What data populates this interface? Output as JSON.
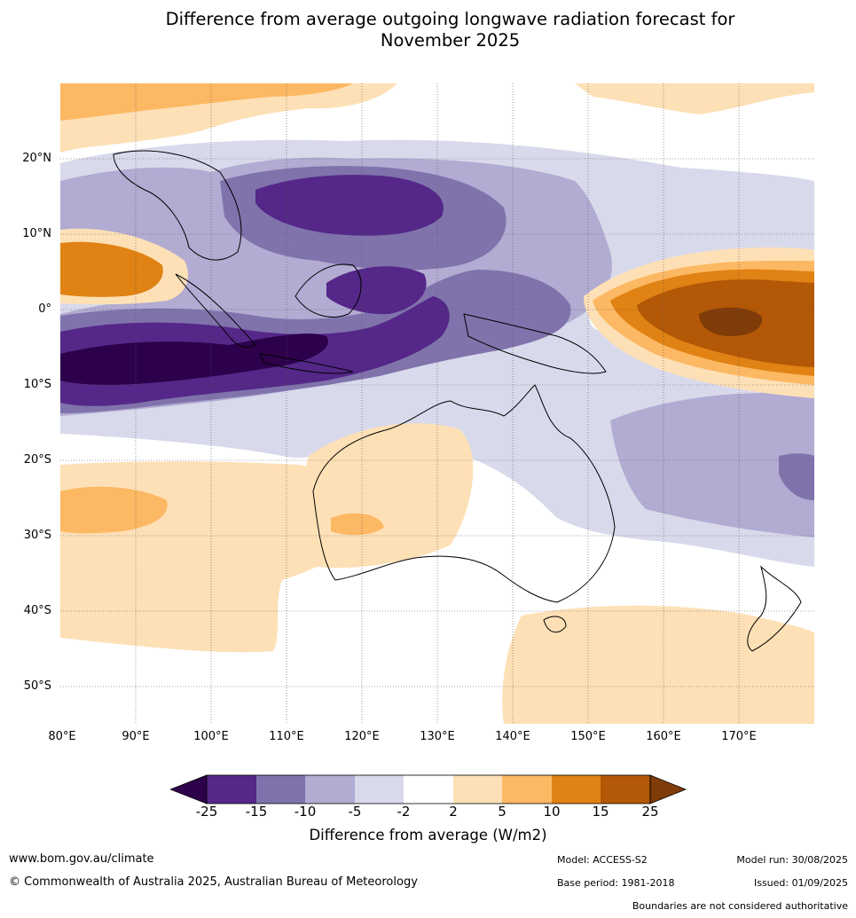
{
  "header": {
    "title_line1": "Difference from average outgoing longwave radiation forecast for",
    "title_line2": "November 2025"
  },
  "map": {
    "latitude_labels": [
      "20°N",
      "10°N",
      "0°",
      "10°S",
      "20°S",
      "30°S",
      "40°S",
      "50°S"
    ],
    "longitude_labels": [
      "80°E",
      "90°E",
      "100°E",
      "110°E",
      "120°E",
      "130°E",
      "140°E",
      "150°E",
      "160°E",
      "170°E"
    ],
    "lon_range": [
      80,
      180
    ],
    "lat_range": [
      -55,
      30
    ]
  },
  "legend": {
    "title": "Difference from average (W/m2)",
    "ticks": [
      "-25",
      "-15",
      "-10",
      "-5",
      "-2",
      "2",
      "5",
      "10",
      "15",
      "25"
    ],
    "colors": {
      "lt_-25": "#2d004b",
      "-25_-15": "#542788",
      "-15_-10": "#8073ac",
      "-10_-5": "#b2abd2",
      "-5_-2": "#d8daeb",
      "-2_2": "#ffffff",
      "2_5": "#fee0b6",
      "5_10": "#fdb863",
      "10_15": "#e08214",
      "15_25": "#b35806",
      "gt_25": "#7f3b08"
    }
  },
  "footer": {
    "website": "www.bom.gov.au/climate",
    "copyright": "© Commonwealth of Australia 2025, Australian Bureau of Meteorology",
    "model": "Model: ACCESS-S2",
    "base_period": "Base period: 1981-2018",
    "model_run": "Model run: 30/08/2025",
    "issued": "Issued: 01/09/2025",
    "disclaimer": "Boundaries are not considered authoritative"
  }
}
